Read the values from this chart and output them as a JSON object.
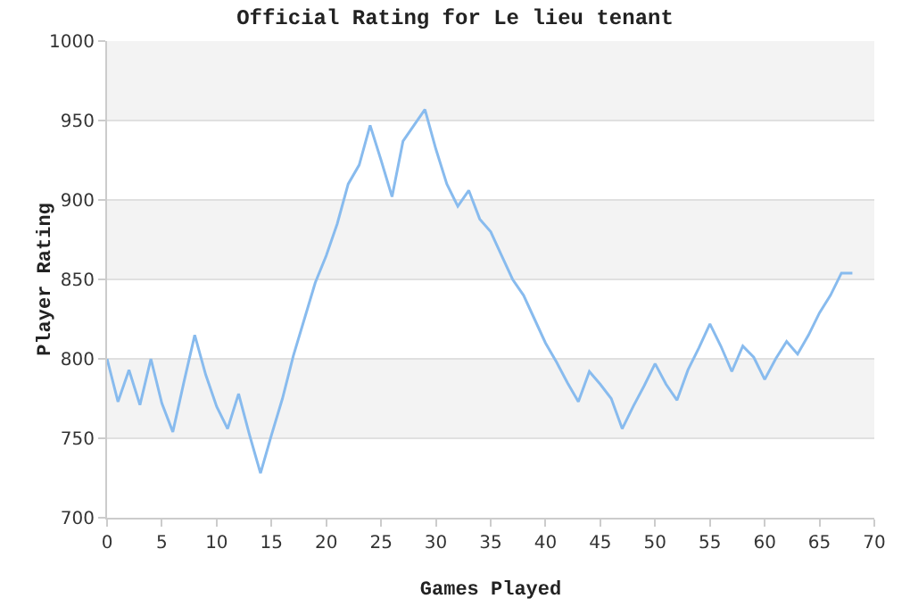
{
  "chart_data": {
    "type": "line",
    "title": "Official Rating for Le lieu tenant",
    "xlabel": "Games Played",
    "ylabel": "Player Rating",
    "x": [
      0,
      1,
      2,
      3,
      4,
      5,
      6,
      7,
      8,
      9,
      10,
      11,
      12,
      13,
      14,
      15,
      16,
      17,
      18,
      19,
      20,
      21,
      22,
      23,
      24,
      25,
      26,
      27,
      28,
      29,
      30,
      31,
      32,
      33,
      34,
      35,
      36,
      37,
      38,
      39,
      40,
      41,
      42,
      43,
      44,
      45,
      46,
      47,
      48,
      49,
      50,
      51,
      52,
      53,
      54,
      55,
      56,
      57,
      58,
      59,
      60,
      61,
      62,
      63,
      64,
      65,
      66,
      67,
      68
    ],
    "series": [
      {
        "color": "#88bbee",
        "values": [
          800,
          773,
          793,
          771,
          800,
          772,
          754,
          785,
          815,
          790,
          770,
          756,
          778,
          752,
          728,
          752,
          775,
          802,
          825,
          848,
          865,
          885,
          910,
          922,
          947,
          925,
          902,
          937,
          947,
          957,
          932,
          910,
          896,
          906,
          888,
          880,
          865,
          850,
          840,
          825,
          810,
          798,
          785,
          773,
          792,
          784,
          775,
          756,
          770,
          783,
          797,
          784,
          774,
          793,
          807,
          822,
          808,
          792,
          808,
          801,
          787,
          800,
          811,
          803,
          815,
          829,
          840,
          854,
          854
        ]
      }
    ],
    "xlim": [
      0,
      70
    ],
    "xticks": [
      0,
      5,
      10,
      15,
      20,
      25,
      30,
      35,
      40,
      45,
      50,
      55,
      60,
      65,
      70
    ],
    "ylim": [
      700,
      1000
    ],
    "yticks": [
      700,
      750,
      800,
      850,
      900,
      950,
      1000
    ],
    "grid": "y",
    "marker": "none",
    "line_style": "solid"
  }
}
